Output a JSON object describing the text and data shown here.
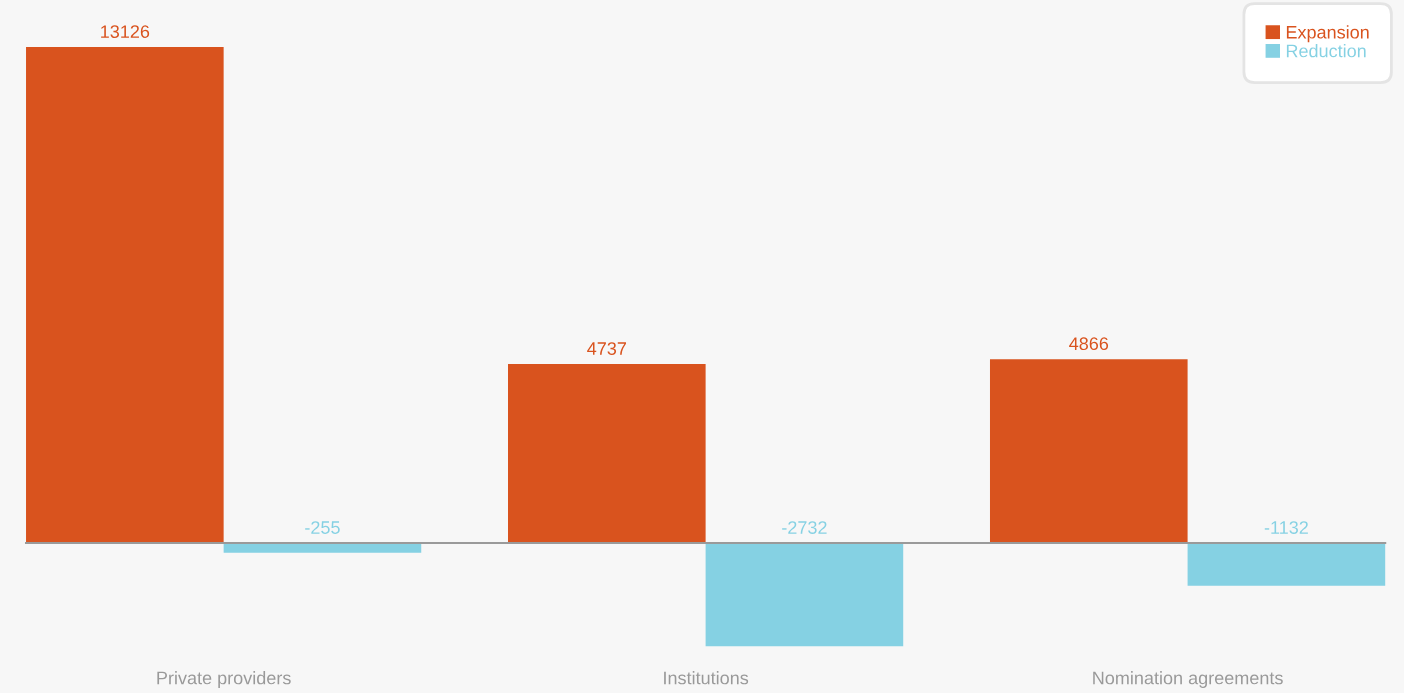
{
  "chart_data": {
    "type": "bar",
    "categories": [
      "Private providers",
      "Institutions",
      "Nomination agreements"
    ],
    "series": [
      {
        "name": "Expansion",
        "color": "#d9531e",
        "values": [
          13126,
          4737,
          4866
        ]
      },
      {
        "name": "Reduction",
        "color": "#85d1e3",
        "values": [
          -255,
          -2732,
          -1132
        ]
      }
    ],
    "data_labels": true,
    "legend": "top right"
  }
}
